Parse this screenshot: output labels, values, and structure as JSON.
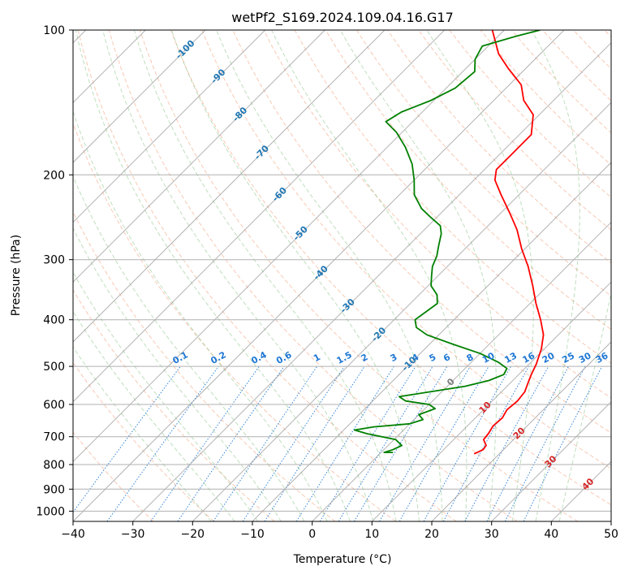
{
  "chart_data": {
    "type": "line",
    "title": "wetPf2_S169.2024.109.04.16.G17",
    "xlabel": "Temperature (°C)",
    "ylabel": "Pressure (hPa)",
    "xlim": [
      -40,
      50
    ],
    "ylim": [
      1050,
      100
    ],
    "y_scale": "log",
    "grid": true,
    "x_ticks": [
      -40,
      -30,
      -20,
      -10,
      0,
      10,
      20,
      30,
      40,
      50
    ],
    "x_tick_labels": [
      "−40",
      "−30",
      "−20",
      "−10",
      "0",
      "10",
      "20",
      "30",
      "40",
      "50"
    ],
    "y_ticks": [
      100,
      200,
      300,
      400,
      500,
      600,
      700,
      800,
      900,
      1000
    ],
    "y_tick_labels": [
      "100",
      "200",
      "300",
      "400",
      "500",
      "600",
      "700",
      "800",
      "900",
      "1000"
    ],
    "series": [
      {
        "color": "#ff0000",
        "points": [
          {
            "p": 760,
            "t": 15.8
          },
          {
            "p": 745,
            "t": 16.6
          },
          {
            "p": 730,
            "t": 16.4
          },
          {
            "p": 710,
            "t": 15.0
          },
          {
            "p": 690,
            "t": 14.8
          },
          {
            "p": 665,
            "t": 14.3
          },
          {
            "p": 640,
            "t": 14.5
          },
          {
            "p": 615,
            "t": 13.9
          },
          {
            "p": 590,
            "t": 14.2
          },
          {
            "p": 565,
            "t": 13.9
          },
          {
            "p": 540,
            "t": 12.9
          },
          {
            "p": 520,
            "t": 12.1
          },
          {
            "p": 495,
            "t": 11.2
          },
          {
            "p": 460,
            "t": 9.5
          },
          {
            "p": 430,
            "t": 7.5
          },
          {
            "p": 400,
            "t": 4.5
          },
          {
            "p": 370,
            "t": 1.0
          },
          {
            "p": 340,
            "t": -2.5
          },
          {
            "p": 310,
            "t": -6.5
          },
          {
            "p": 285,
            "t": -10.5
          },
          {
            "p": 260,
            "t": -14.5
          },
          {
            "p": 240,
            "t": -18.5
          },
          {
            "p": 220,
            "t": -23.0
          },
          {
            "p": 205,
            "t": -26.5
          },
          {
            "p": 195,
            "t": -28.0
          },
          {
            "p": 180,
            "t": -28.0
          },
          {
            "p": 165,
            "t": -28.0
          },
          {
            "p": 150,
            "t": -31.0
          },
          {
            "p": 140,
            "t": -35.0
          },
          {
            "p": 130,
            "t": -38.0
          },
          {
            "p": 120,
            "t": -43.0
          },
          {
            "p": 112,
            "t": -47.0
          },
          {
            "p": 100,
            "t": -52.0
          }
        ]
      },
      {
        "color": "#008000",
        "points": [
          {
            "p": 755,
            "t": 2.0
          },
          {
            "p": 755,
            "t": 0.5
          },
          {
            "p": 745,
            "t": 1.5
          },
          {
            "p": 730,
            "t": 2.3
          },
          {
            "p": 710,
            "t": 0.3
          },
          {
            "p": 690,
            "t": -5.5
          },
          {
            "p": 678,
            "t": -8.2
          },
          {
            "p": 668,
            "t": -5.5
          },
          {
            "p": 658,
            "t": 0.0
          },
          {
            "p": 645,
            "t": 1.5
          },
          {
            "p": 630,
            "t": 0.0
          },
          {
            "p": 612,
            "t": 1.7
          },
          {
            "p": 600,
            "t": 0.0
          },
          {
            "p": 590,
            "t": -4.5
          },
          {
            "p": 578,
            "t": -6.3
          },
          {
            "p": 565,
            "t": -2.0
          },
          {
            "p": 550,
            "t": 3.0
          },
          {
            "p": 535,
            "t": 6.0
          },
          {
            "p": 520,
            "t": 7.5
          },
          {
            "p": 505,
            "t": 7.0
          },
          {
            "p": 490,
            "t": 4.5
          },
          {
            "p": 470,
            "t": 0.0
          },
          {
            "p": 450,
            "t": -6.0
          },
          {
            "p": 430,
            "t": -12.0
          },
          {
            "p": 415,
            "t": -15.0
          },
          {
            "p": 400,
            "t": -16.5
          },
          {
            "p": 385,
            "t": -16.0
          },
          {
            "p": 370,
            "t": -15.5
          },
          {
            "p": 355,
            "t": -17.0
          },
          {
            "p": 340,
            "t": -19.5
          },
          {
            "p": 325,
            "t": -21.0
          },
          {
            "p": 310,
            "t": -22.5
          },
          {
            "p": 295,
            "t": -23.5
          },
          {
            "p": 280,
            "t": -25.0
          },
          {
            "p": 265,
            "t": -26.5
          },
          {
            "p": 255,
            "t": -28.0
          },
          {
            "p": 245,
            "t": -31.0
          },
          {
            "p": 235,
            "t": -34.0
          },
          {
            "p": 220,
            "t": -37.5
          },
          {
            "p": 205,
            "t": -40.0
          },
          {
            "p": 190,
            "t": -43.0
          },
          {
            "p": 175,
            "t": -47.0
          },
          {
            "p": 163,
            "t": -51.0
          },
          {
            "p": 155,
            "t": -54.5
          },
          {
            "p": 148,
            "t": -53.5
          },
          {
            "p": 140,
            "t": -50.5
          },
          {
            "p": 132,
            "t": -48.5
          },
          {
            "p": 122,
            "t": -48.0
          },
          {
            "p": 115,
            "t": -50.0
          },
          {
            "p": 108,
            "t": -51.0
          },
          {
            "p": 103,
            "t": -47.0
          },
          {
            "p": 100,
            "t": -44.0
          }
        ]
      }
    ],
    "mixing_ratio_labels": [
      "0.1",
      "0.2",
      "0.4",
      "0.6",
      "1",
      "1.5",
      "2",
      "3",
      "4",
      "5",
      "6",
      "8",
      "10",
      "13",
      "16",
      "20",
      "25",
      "30",
      "36"
    ],
    "mixing_ratio_values": [
      0.1,
      0.2,
      0.4,
      0.6,
      1,
      1.5,
      2,
      3,
      4,
      5,
      6,
      8,
      10,
      13,
      16,
      20,
      25,
      30,
      36
    ],
    "isotherm_labels_blue": [
      "-100",
      "-90",
      "-80",
      "-70",
      "-60",
      "-50",
      "-40",
      "-30",
      "-20",
      "-10"
    ],
    "isotherm_values_blue": [
      -100,
      -90,
      -80,
      -70,
      -60,
      -50,
      -40,
      -30,
      -20,
      -10
    ],
    "isotherm_labels_gray": [
      "0"
    ],
    "isotherm_values_gray": [
      0
    ],
    "isotherm_labels_red": [
      "10",
      "20",
      "30",
      "40"
    ],
    "isotherm_values_red": [
      10,
      20,
      30,
      40
    ],
    "colors": {
      "temperature": "#ff0000",
      "dewpoint": "#008000",
      "isotherm": "#999999",
      "dry_adiabat": "#f4a582",
      "moist_adiabat": "#7fbf7b",
      "mixing_ratio": "#1f78d4",
      "isobar": "#b0b0b0",
      "label_blue": "#1f77b4",
      "label_gray": "#7f7f7f",
      "label_red": "#d62728"
    }
  }
}
